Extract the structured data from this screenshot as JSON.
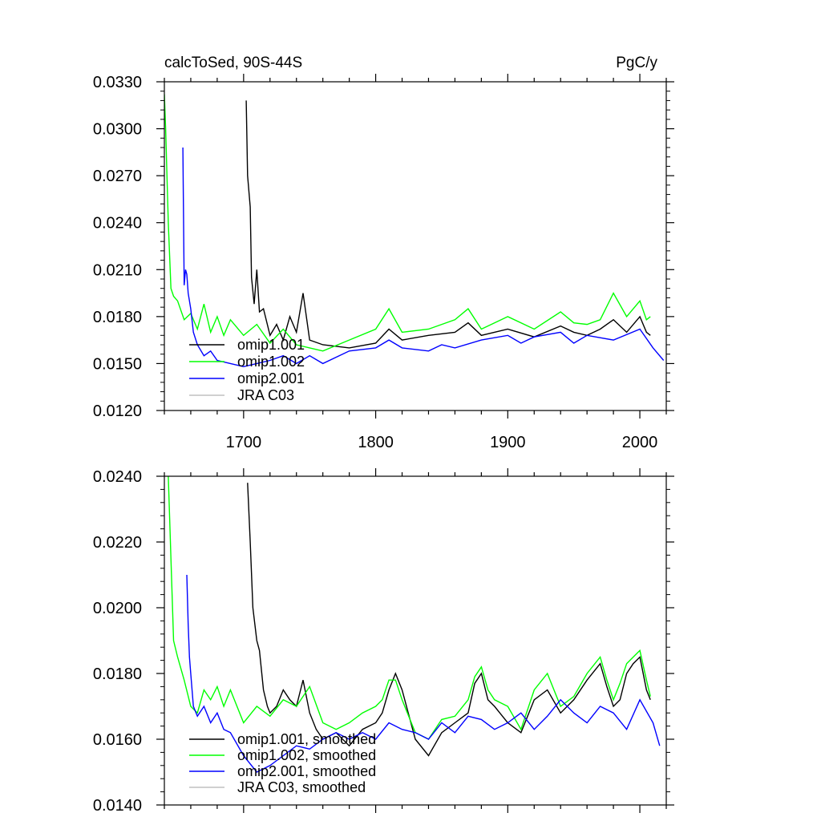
{
  "chart_data": [
    {
      "type": "line",
      "title_left": "calcToSed, 90S-44S",
      "title_right": "PgC/y",
      "xlabel": "",
      "ylabel": "",
      "xlim": [
        1640,
        2020
      ],
      "ylim": [
        0.012,
        0.033
      ],
      "xticks": [
        1700,
        1800,
        1900,
        2000
      ],
      "xtick_labels": [
        "1700",
        "1800",
        "1900",
        "2000"
      ],
      "yticks": [
        0.012,
        0.015,
        0.018,
        0.021,
        0.024,
        0.027,
        0.03,
        0.033
      ],
      "ytick_labels": [
        "0.0120",
        "0.0150",
        "0.0180",
        "0.0210",
        "0.0240",
        "0.0270",
        "0.0300",
        "0.0330"
      ],
      "grid": false,
      "legend_position": "lower-left",
      "series": [
        {
          "name": "omip1.001",
          "color": "#000000",
          "x": [
            1702,
            1703,
            1705,
            1706,
            1708,
            1710,
            1712,
            1715,
            1720,
            1725,
            1730,
            1735,
            1740,
            1745,
            1750,
            1760,
            1780,
            1800,
            1810,
            1820,
            1840,
            1860,
            1870,
            1880,
            1900,
            1920,
            1940,
            1950,
            1960,
            1970,
            1980,
            1990,
            2000,
            2005,
            2008
          ],
          "y": [
            0.0318,
            0.027,
            0.025,
            0.0205,
            0.0188,
            0.021,
            0.0183,
            0.0185,
            0.0168,
            0.0175,
            0.0165,
            0.018,
            0.017,
            0.0195,
            0.0165,
            0.0162,
            0.016,
            0.0163,
            0.0172,
            0.0165,
            0.0168,
            0.017,
            0.0176,
            0.0168,
            0.0172,
            0.0167,
            0.0174,
            0.017,
            0.0168,
            0.0172,
            0.0178,
            0.017,
            0.018,
            0.017,
            0.0168
          ]
        },
        {
          "name": "omip1.002",
          "color": "#00ff00",
          "x": [
            1640,
            1641,
            1643,
            1645,
            1647,
            1650,
            1655,
            1660,
            1665,
            1670,
            1675,
            1680,
            1685,
            1690,
            1700,
            1710,
            1720,
            1730,
            1740,
            1750,
            1760,
            1780,
            1800,
            1810,
            1820,
            1840,
            1860,
            1870,
            1880,
            1900,
            1920,
            1940,
            1950,
            1960,
            1970,
            1980,
            1990,
            2000,
            2005,
            2008
          ],
          "y": [
            0.0322,
            0.03,
            0.024,
            0.0198,
            0.0193,
            0.019,
            0.0178,
            0.0182,
            0.0172,
            0.0188,
            0.017,
            0.018,
            0.0168,
            0.0178,
            0.0168,
            0.0175,
            0.0163,
            0.0172,
            0.0162,
            0.016,
            0.0158,
            0.0165,
            0.0172,
            0.0185,
            0.017,
            0.0172,
            0.0178,
            0.0185,
            0.0172,
            0.018,
            0.0172,
            0.0183,
            0.0176,
            0.0175,
            0.0178,
            0.0195,
            0.018,
            0.019,
            0.0178,
            0.018
          ]
        },
        {
          "name": "omip2.001",
          "color": "#0000ff",
          "x": [
            1654,
            1655,
            1656,
            1657,
            1658,
            1660,
            1662,
            1665,
            1670,
            1675,
            1680,
            1690,
            1700,
            1710,
            1720,
            1730,
            1740,
            1750,
            1760,
            1780,
            1800,
            1810,
            1820,
            1840,
            1850,
            1860,
            1880,
            1900,
            1910,
            1920,
            1940,
            1950,
            1960,
            1980,
            2000,
            2010,
            2018
          ],
          "y": [
            0.0288,
            0.02,
            0.021,
            0.0207,
            0.0195,
            0.0185,
            0.017,
            0.0162,
            0.0155,
            0.0158,
            0.0152,
            0.015,
            0.0148,
            0.015,
            0.0152,
            0.0155,
            0.015,
            0.0155,
            0.015,
            0.0158,
            0.016,
            0.0165,
            0.016,
            0.0158,
            0.0162,
            0.016,
            0.0165,
            0.0168,
            0.0163,
            0.0167,
            0.017,
            0.0163,
            0.0168,
            0.0165,
            0.0172,
            0.016,
            0.0152
          ]
        },
        {
          "name": "JRA C03",
          "color": "#c0c0c0",
          "x": [],
          "y": []
        }
      ]
    },
    {
      "type": "line",
      "title_left": "",
      "title_right": "",
      "xlabel": "",
      "ylabel": "",
      "xlim": [
        1640,
        2020
      ],
      "ylim": [
        0.014,
        0.024
      ],
      "xticks": [
        1700,
        1800,
        1900,
        2000
      ],
      "xtick_labels": [],
      "yticks": [
        0.014,
        0.016,
        0.018,
        0.02,
        0.022,
        0.024
      ],
      "ytick_labels": [
        "0.0140",
        "0.0160",
        "0.0180",
        "0.0200",
        "0.0220",
        "0.0240"
      ],
      "grid": false,
      "legend_position": "lower-left",
      "series": [
        {
          "name": "omip1.001, smoothed",
          "color": "#000000",
          "x": [
            1703,
            1705,
            1707,
            1710,
            1712,
            1715,
            1718,
            1720,
            1725,
            1730,
            1735,
            1740,
            1745,
            1750,
            1755,
            1760,
            1770,
            1780,
            1790,
            1800,
            1805,
            1810,
            1815,
            1820,
            1830,
            1840,
            1850,
            1860,
            1870,
            1875,
            1880,
            1885,
            1890,
            1900,
            1910,
            1920,
            1930,
            1940,
            1950,
            1960,
            1970,
            1975,
            1980,
            1985,
            1990,
            1995,
            2000,
            2005,
            2008
          ],
          "y": [
            0.0238,
            0.022,
            0.02,
            0.019,
            0.0187,
            0.0175,
            0.017,
            0.0168,
            0.017,
            0.0175,
            0.0172,
            0.017,
            0.0178,
            0.0168,
            0.0163,
            0.016,
            0.0162,
            0.0158,
            0.0163,
            0.0165,
            0.0168,
            0.0175,
            0.018,
            0.0175,
            0.016,
            0.0155,
            0.0162,
            0.0165,
            0.0168,
            0.0177,
            0.018,
            0.0172,
            0.017,
            0.0165,
            0.0162,
            0.0172,
            0.0175,
            0.0168,
            0.0172,
            0.0178,
            0.0183,
            0.0176,
            0.017,
            0.0172,
            0.018,
            0.0183,
            0.0185,
            0.0175,
            0.0172
          ]
        },
        {
          "name": "omip1.002, smoothed",
          "color": "#00ff00",
          "x": [
            1643,
            1645,
            1647,
            1650,
            1655,
            1660,
            1665,
            1670,
            1675,
            1680,
            1685,
            1690,
            1700,
            1710,
            1720,
            1730,
            1740,
            1750,
            1760,
            1770,
            1780,
            1790,
            1800,
            1805,
            1810,
            1815,
            1820,
            1830,
            1840,
            1850,
            1860,
            1870,
            1875,
            1880,
            1885,
            1890,
            1900,
            1910,
            1920,
            1930,
            1940,
            1950,
            1960,
            1970,
            1975,
            1980,
            1985,
            1990,
            1995,
            2000,
            2005,
            2008
          ],
          "y": [
            0.024,
            0.0215,
            0.019,
            0.0185,
            0.0178,
            0.017,
            0.0168,
            0.0175,
            0.0172,
            0.0176,
            0.017,
            0.0175,
            0.0165,
            0.017,
            0.0167,
            0.0172,
            0.017,
            0.0176,
            0.0165,
            0.0163,
            0.0165,
            0.0168,
            0.017,
            0.0172,
            0.0178,
            0.0178,
            0.0172,
            0.0162,
            0.016,
            0.0166,
            0.0167,
            0.0172,
            0.0179,
            0.0182,
            0.0175,
            0.0172,
            0.017,
            0.0163,
            0.0175,
            0.018,
            0.017,
            0.0173,
            0.018,
            0.0185,
            0.0178,
            0.0172,
            0.0177,
            0.0183,
            0.0185,
            0.0187,
            0.0178,
            0.0173
          ]
        },
        {
          "name": "omip2.001, smoothed",
          "color": "#0000ff",
          "x": [
            1657,
            1658,
            1659,
            1660,
            1662,
            1665,
            1670,
            1675,
            1680,
            1685,
            1690,
            1700,
            1710,
            1720,
            1730,
            1740,
            1750,
            1760,
            1770,
            1780,
            1790,
            1800,
            1810,
            1820,
            1830,
            1840,
            1850,
            1860,
            1870,
            1880,
            1890,
            1900,
            1910,
            1920,
            1930,
            1940,
            1950,
            1960,
            1970,
            1980,
            1990,
            2000,
            2010,
            2015
          ],
          "y": [
            0.021,
            0.0195,
            0.0185,
            0.018,
            0.017,
            0.0167,
            0.017,
            0.0165,
            0.0168,
            0.0163,
            0.0162,
            0.0155,
            0.015,
            0.0152,
            0.0155,
            0.0158,
            0.0157,
            0.016,
            0.0162,
            0.016,
            0.0162,
            0.016,
            0.0165,
            0.0163,
            0.0162,
            0.016,
            0.0165,
            0.0162,
            0.0167,
            0.0166,
            0.0163,
            0.0165,
            0.0168,
            0.0163,
            0.0167,
            0.0172,
            0.0168,
            0.0165,
            0.017,
            0.0168,
            0.0163,
            0.0172,
            0.0165,
            0.0158
          ]
        },
        {
          "name": "JRA C03, smoothed",
          "color": "#c0c0c0",
          "x": [],
          "y": []
        }
      ]
    }
  ]
}
